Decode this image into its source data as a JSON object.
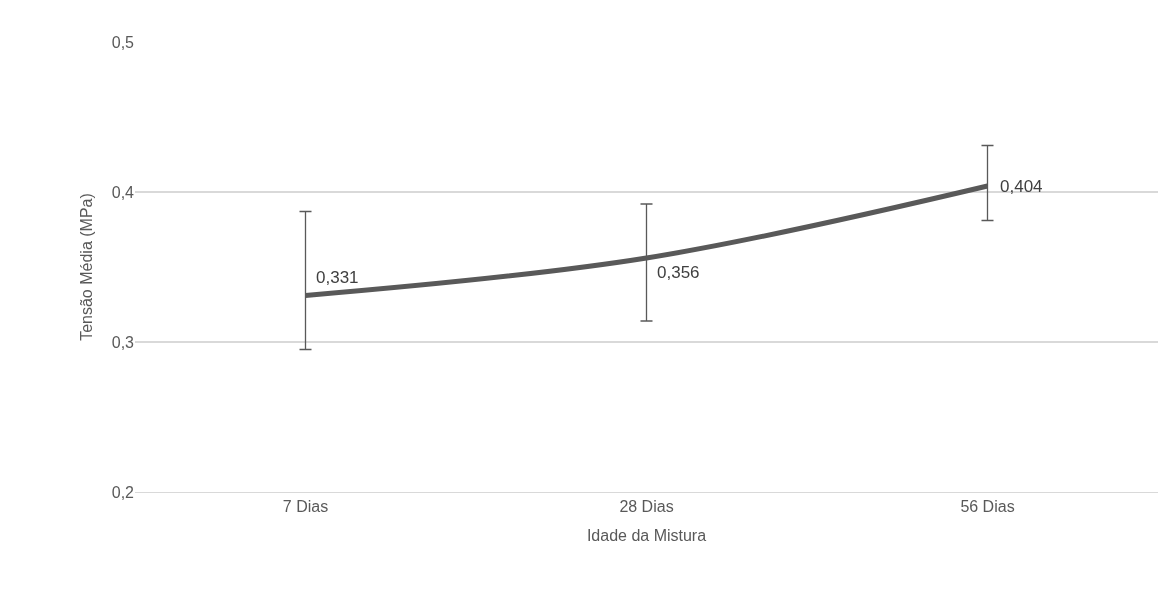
{
  "chart_data": {
    "type": "line",
    "xlabel": "Idade da Mistura",
    "ylabel": "Tensão Média (MPa)",
    "categories": [
      "7 Dias",
      "28 Dias",
      "56 Dias"
    ],
    "series": [
      {
        "color": "#595959",
        "values": [
          0.331,
          0.356,
          0.404
        ],
        "value_labels": [
          "0,331",
          "0,356",
          "0,404"
        ],
        "errors": [
          [
            0.295,
            0.387
          ],
          [
            0.314,
            0.392
          ],
          [
            0.381,
            0.431
          ]
        ]
      }
    ],
    "ylim": [
      0.2,
      0.5
    ],
    "yticks": [
      {
        "value": 0.2,
        "label": "0,2"
      },
      {
        "value": 0.3,
        "label": "0,3"
      },
      {
        "value": 0.4,
        "label": "0,4"
      },
      {
        "value": 0.5,
        "label": "0,5"
      }
    ],
    "grid": "y",
    "marker": "none",
    "line_style": "solid"
  }
}
